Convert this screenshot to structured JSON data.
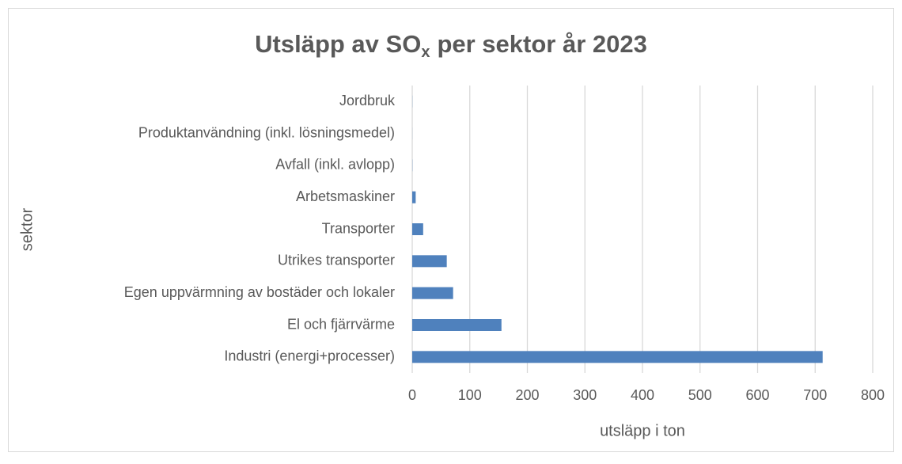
{
  "chart_data": {
    "type": "barh",
    "title": {
      "main": "Utsläpp av SO",
      "subscript": "x",
      "rest": "per sektor år 2023"
    },
    "xlabel": "utsläpp i ton",
    "ylabel": "sektor",
    "categories": [
      "Jordbruk",
      "Produktanvändning (inkl. lösningsmedel)",
      "Avfall (inkl. avlopp)",
      "Arbetsmaskiner",
      "Transporter",
      "Utrikes transporter",
      "Egen uppvärmning av bostäder och lokaler",
      "El och fjärrvärme",
      "Industri (energi+processer)"
    ],
    "values": [
      0.2,
      0.1,
      0.3,
      6,
      19,
      60,
      71,
      155,
      713
    ],
    "color": "#4f81bd",
    "xlim": [
      0,
      800
    ],
    "xticks": [
      0,
      100,
      200,
      300,
      400,
      500,
      600,
      700,
      800
    ],
    "grid": true
  }
}
